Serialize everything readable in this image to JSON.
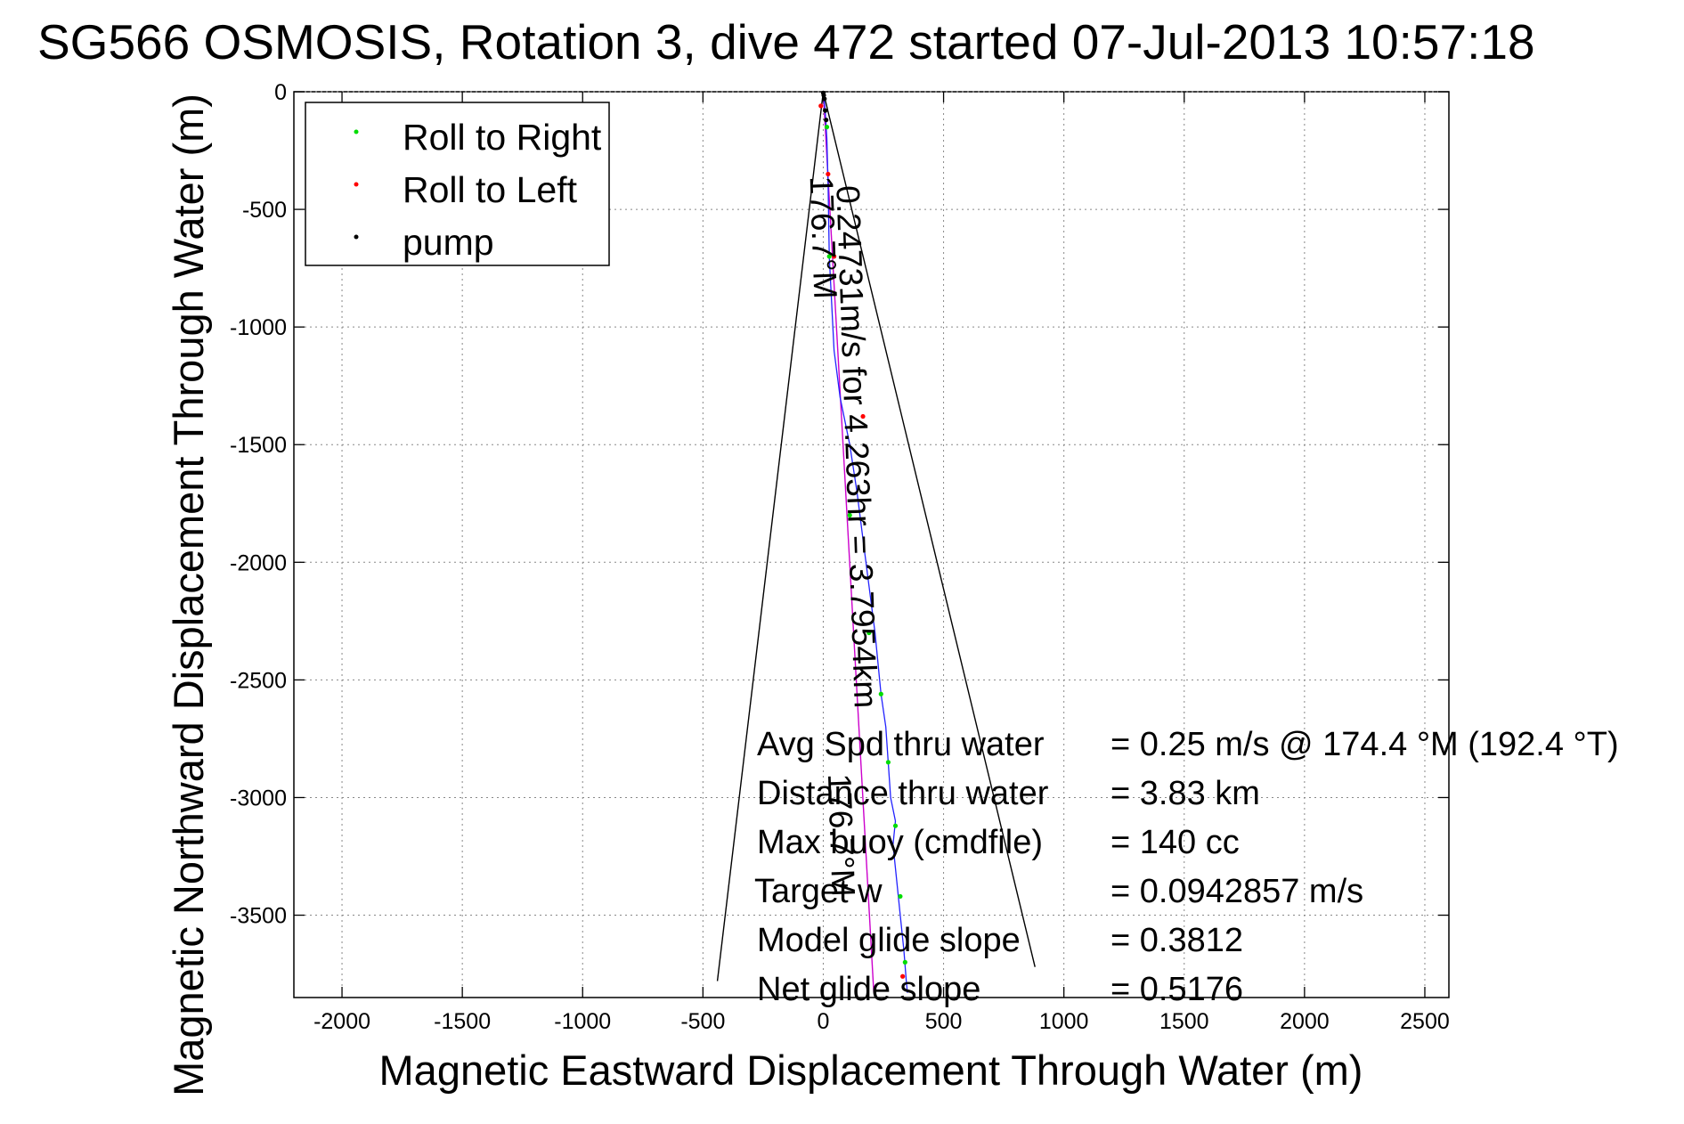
{
  "chart_data": {
    "type": "scatter",
    "title": "SG566 OSMOSIS, Rotation 3, dive 472 started 07-Jul-2013 10:57:18",
    "xlabel": "Magnetic Eastward Displacement Through Water (m)",
    "ylabel": "Magnetic Northward Displacement Through Water (m)",
    "xlim": [
      -2200,
      2600
    ],
    "ylim": [
      -3850,
      0
    ],
    "xticks": [
      -2000,
      -1500,
      -1000,
      -500,
      0,
      500,
      1000,
      1500,
      2000,
      2500
    ],
    "yticks": [
      0,
      -500,
      -1000,
      -1500,
      -2000,
      -2500,
      -3000,
      -3500
    ],
    "grid": true,
    "legend_position": "top-left",
    "legend": [
      {
        "label": "Roll to Right",
        "color": "#00dd00"
      },
      {
        "label": "Roll to Left",
        "color": "#ff0000"
      },
      {
        "label": "pump",
        "color": "#000000"
      }
    ],
    "series": [
      {
        "name": "Roll to Right",
        "color": "#00dd00",
        "marker": "dot",
        "x": [
          15,
          25,
          110,
          190,
          240,
          270,
          300,
          320,
          340
        ],
        "y": [
          -150,
          -700,
          -1800,
          -2300,
          -2560,
          -2850,
          -3120,
          -3420,
          -3700
        ]
      },
      {
        "name": "Roll to Left",
        "color": "#ff0000",
        "marker": "dot",
        "x": [
          -10,
          20,
          45,
          165,
          330
        ],
        "y": [
          -60,
          -350,
          -700,
          -1380,
          -3760
        ]
      },
      {
        "name": "pump",
        "color": "#000000",
        "marker": "dot",
        "x": [
          0,
          2,
          5,
          8,
          12
        ],
        "y": [
          -5,
          -15,
          -30,
          -80,
          -120
        ]
      }
    ],
    "track": {
      "color": "#2222ff",
      "x": [
        0,
        8,
        15,
        20,
        25,
        35,
        45,
        70,
        110,
        140,
        165,
        190,
        215,
        240,
        260,
        270,
        280,
        300,
        290,
        300,
        320,
        335,
        345,
        350
      ],
      "y": [
        0,
        -80,
        -200,
        -400,
        -700,
        -900,
        -1100,
        -1300,
        -1500,
        -1700,
        -1900,
        -2100,
        -2300,
        -2560,
        -2700,
        -2850,
        -3000,
        -3100,
        -3200,
        -3300,
        -3500,
        -3650,
        -3780,
        -3830
      ]
    },
    "net_line": {
      "color": "#cc00cc",
      "x": [
        0,
        210
      ],
      "y": [
        0,
        -3830
      ]
    },
    "envelope": {
      "color": "#000000",
      "left": {
        "x": [
          0,
          -440
        ],
        "y": [
          0,
          -3780
        ]
      },
      "right": {
        "x": [
          0,
          880
        ],
        "y": [
          0,
          -3720
        ]
      }
    },
    "annotations": [
      {
        "text": "0.24731m/s for 4.263hr = 3.7954km",
        "x": 55,
        "y": -400,
        "rotation": 88
      },
      {
        "text": "176.7°M",
        "x": -55,
        "y": -360,
        "rotation": 88
      },
      {
        "text": "176.7°M",
        "x": 20,
        "y": -2900,
        "rotation": 88
      }
    ],
    "stats": [
      {
        "label": "Avg Spd thru water",
        "value": "=  0.25 m/s @ 174.4 °M (192.4 °T)"
      },
      {
        "label": "Distance thru water",
        "value": "=  3.83 km"
      },
      {
        "label": "Max buoy (cmdfile)",
        "value": "= 140 cc"
      },
      {
        "label": "Target w",
        "value": "= 0.0942857 m/s"
      },
      {
        "label": "Model glide slope",
        "value": "= 0.3812"
      },
      {
        "label": "Net glide slope",
        "value": "= 0.5176"
      }
    ]
  }
}
